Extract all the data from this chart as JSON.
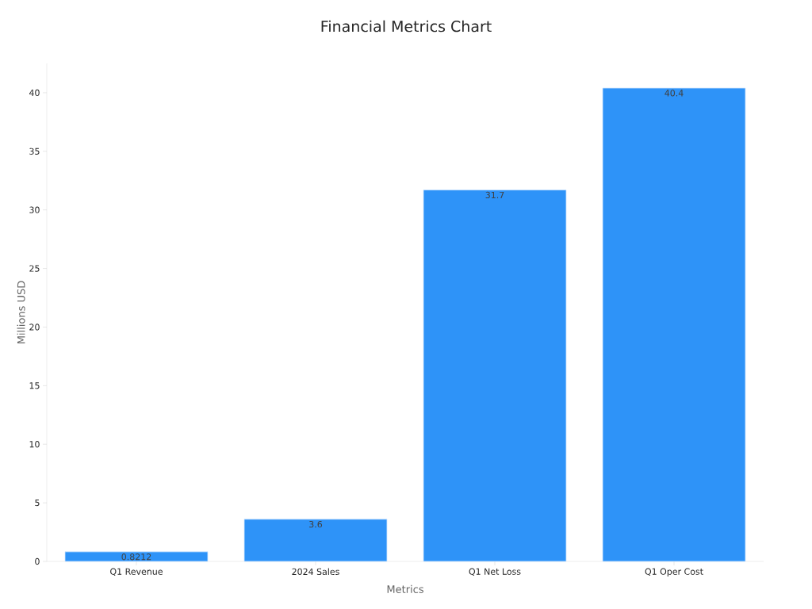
{
  "chart_data": {
    "type": "bar",
    "title": "Financial Metrics Chart",
    "xlabel": "Metrics",
    "ylabel": "Millions USD",
    "categories": [
      "Q1 Revenue",
      "2024 Sales",
      "Q1 Net Loss",
      "Q1 Oper Cost"
    ],
    "values": [
      0.8212,
      3.6,
      31.7,
      40.4
    ],
    "value_labels": [
      "0.8212",
      "3.6",
      "31.7",
      "40.4"
    ],
    "color": "#2e93f8",
    "ylim": [
      0,
      42.5
    ],
    "yticks": [
      0,
      5,
      10,
      15,
      20,
      25,
      30,
      35,
      40
    ]
  }
}
